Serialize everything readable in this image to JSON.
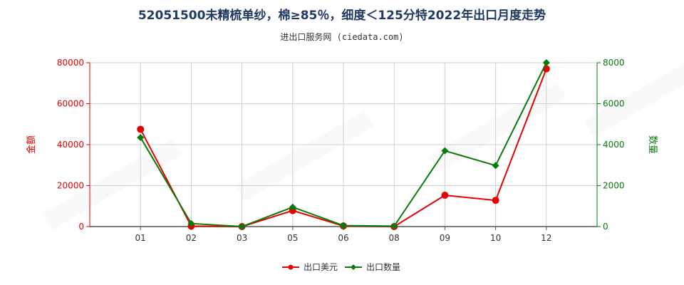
{
  "chart_data": {
    "type": "line",
    "title": "52051500未精梳单纱，棉≥85％，细度＜125分特2022年出口月度走势",
    "subtitle": "进出口服务网 (ciedata.com)",
    "categories": [
      "01",
      "02",
      "03",
      "05",
      "06",
      "08",
      "09",
      "10",
      "12"
    ],
    "y_left": {
      "label": "金额",
      "min": 0,
      "max": 80000,
      "ticks": [
        "0",
        "20000",
        "40000",
        "60000",
        "80000"
      ]
    },
    "y_right": {
      "label": "数量",
      "min": 0,
      "max": 8000,
      "ticks": [
        "0",
        "2000",
        "4000",
        "6000",
        "8000"
      ]
    },
    "grid": true,
    "legend_position": "bottom",
    "series": [
      {
        "name": "出口美元",
        "axis": "left",
        "color": "#e60000",
        "marker": "circle",
        "values": [
          47500,
          200,
          0,
          7800,
          300,
          0,
          15300,
          12800,
          77000
        ]
      },
      {
        "name": "出口数量",
        "axis": "right",
        "color": "#0a7a0a",
        "marker": "diamond",
        "values": [
          4350,
          150,
          0,
          950,
          50,
          20,
          3700,
          2980,
          8000
        ]
      }
    ]
  }
}
